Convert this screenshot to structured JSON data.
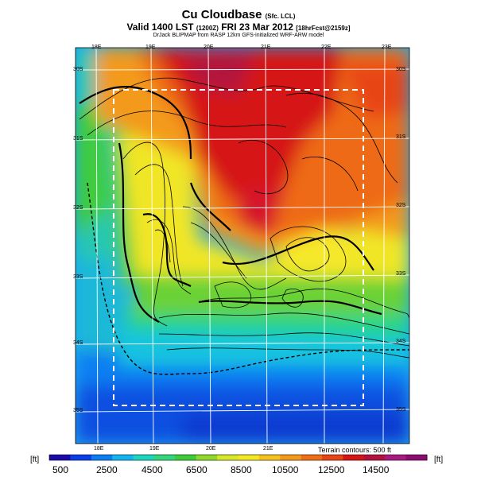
{
  "header": {
    "title": "Cu Cloudbase",
    "title_suffix": "(Sfc. LCL)",
    "subtitle": "Valid 1400 LST",
    "subtitle_code": "(1200Z)",
    "subtitle_date": "FRI 23 Mar 2012",
    "subtitle_forecast": "[18hrFcst@2159z]",
    "credit": "DrJack BLIPMAP from RASP 12km GFS-initialized WRF-ARW model"
  },
  "map": {
    "lon_labels_top": [
      "18E",
      "19E",
      "20E",
      "21E",
      "22E",
      "23E"
    ],
    "lon_labels_bottom": [
      "18E",
      "19E",
      "20E",
      "21E"
    ],
    "lat_labels_left": [
      "30S",
      "31S",
      "32S",
      "33S",
      "34S",
      "35S"
    ],
    "lat_labels_right": [
      "30S",
      "31S",
      "32S",
      "33S",
      "34S",
      "35S"
    ],
    "terrain_note": "Terrain contours: 500 ft"
  },
  "colorbar": {
    "unit_left": "[ft]",
    "unit_right": "[ft]",
    "labels": [
      "500",
      "2500",
      "4500",
      "6500",
      "8500",
      "10500",
      "12500",
      "14500"
    ],
    "colors": [
      "#1a0aa8",
      "#0b3ee6",
      "#0a7ef2",
      "#12b5ef",
      "#1cd6c0",
      "#33d67a",
      "#3fcc3a",
      "#8fd92c",
      "#d6e82a",
      "#f3e823",
      "#f5c21e",
      "#f39a1a",
      "#ee6f16",
      "#e84414",
      "#d61616",
      "#b3123e",
      "#a81a80",
      "#8a0d6f"
    ]
  }
}
